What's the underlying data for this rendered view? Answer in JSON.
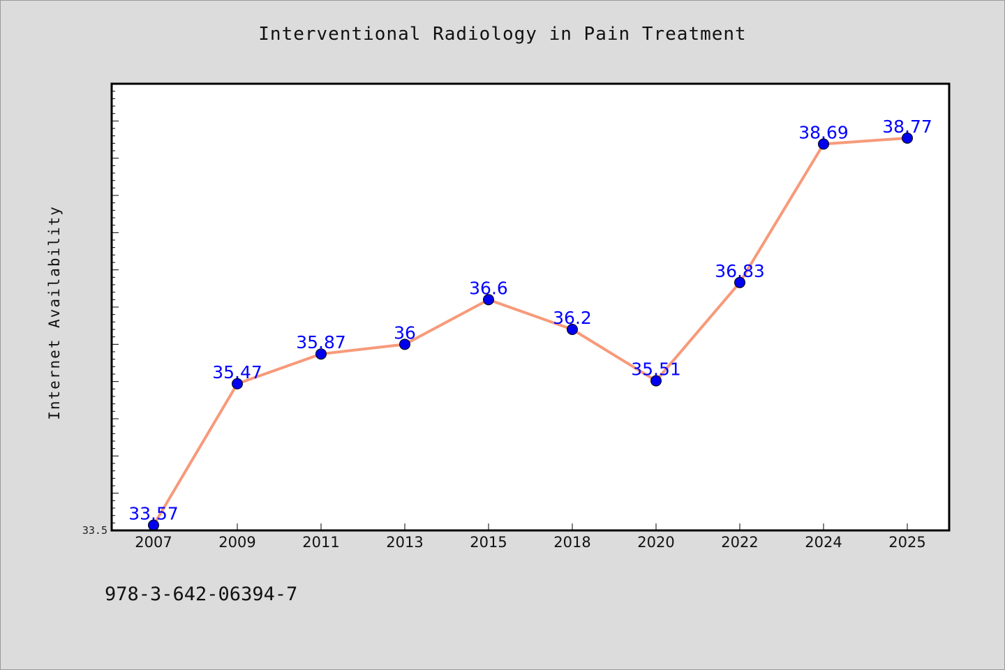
{
  "chart_data": {
    "type": "line",
    "title": "Interventional Radiology in Pain Treatment",
    "xlabel": "",
    "ylabel": "Internet Availability",
    "categories": [
      "2007",
      "2009",
      "2011",
      "2013",
      "2015",
      "2018",
      "2020",
      "2022",
      "2024",
      "2025"
    ],
    "series": [
      {
        "values": [
          33.57,
          35.47,
          35.87,
          36,
          36.6,
          36.2,
          35.51,
          36.83,
          38.69,
          38.77
        ],
        "data_labels": [
          "33.57",
          "35.47",
          "35.87",
          "36",
          "36.6",
          "36.2",
          "35.51",
          "36.83",
          "38.69",
          "38.77"
        ],
        "line_color": "#f79a7a",
        "marker_color": "#0000ee",
        "label_color": "#0000ff"
      }
    ],
    "ylim": [
      33.5,
      39.5
    ],
    "y_tick_labels": [
      "33.5"
    ],
    "grid": false,
    "legend": "none",
    "plot_background": "#ffffff",
    "page_background": "#dcdcdc"
  },
  "footer": {
    "isbn": "978-3-642-06394-7"
  }
}
